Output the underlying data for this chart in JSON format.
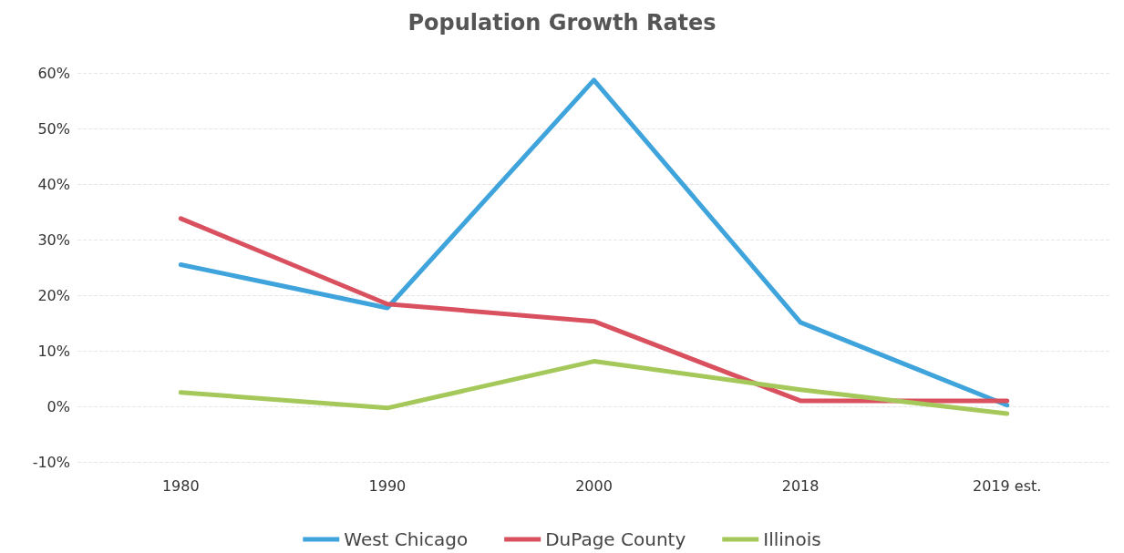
{
  "chart_data": {
    "type": "line",
    "title": "Population Growth Rates",
    "categories": [
      "1980",
      "1990",
      "2000",
      "2018",
      "2019 est."
    ],
    "series": [
      {
        "name": "West Chicago",
        "color": "#3fa4dc",
        "values": [
          25.5,
          17.7,
          58.7,
          15.1,
          0.2
        ]
      },
      {
        "name": "DuPage County",
        "color": "#d9505f",
        "values": [
          33.8,
          18.4,
          15.3,
          1.0,
          1.0
        ]
      },
      {
        "name": "Illinois",
        "color": "#a5c85a",
        "values": [
          2.5,
          -0.3,
          8.1,
          3.0,
          -1.3
        ]
      }
    ],
    "ylim": [
      -10,
      60
    ],
    "yticks": [
      {
        "value": -10,
        "label": "-10%"
      },
      {
        "value": 0,
        "label": "0%"
      },
      {
        "value": 10,
        "label": "10%"
      },
      {
        "value": 20,
        "label": "20%"
      },
      {
        "value": 30,
        "label": "30%"
      },
      {
        "value": 40,
        "label": "40%"
      },
      {
        "value": 50,
        "label": "50%"
      },
      {
        "value": 60,
        "label": "60%"
      }
    ],
    "grid": "y",
    "legend": "bottom",
    "marker": "none",
    "line_style": "solid"
  }
}
